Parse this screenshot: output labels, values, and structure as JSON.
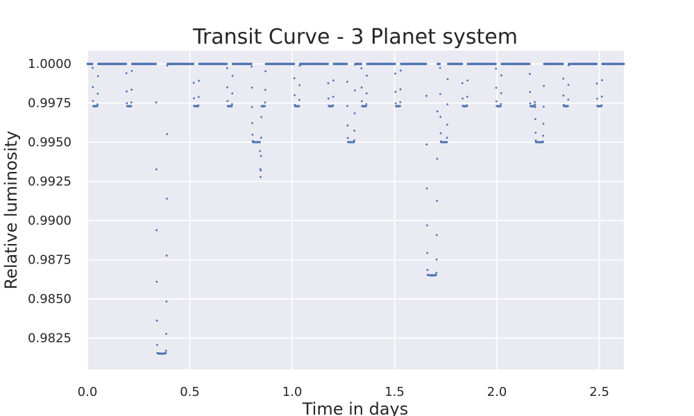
{
  "chart_data": {
    "type": "scatter",
    "title": "Transit Curve - 3 Planet system",
    "xlabel": "Time in days",
    "ylabel": "Relative luminosity",
    "xlim": [
      0.0,
      2.62
    ],
    "ylim": [
      0.98049,
      1.00085
    ],
    "xticks": [
      0.0,
      0.5,
      1.0,
      1.5,
      2.0,
      2.5
    ],
    "xtick_labels": [
      "0.0",
      "0.5",
      "1.0",
      "1.5",
      "2.0",
      "2.5"
    ],
    "yticks": [
      0.9825,
      0.985,
      0.9875,
      0.99,
      0.9925,
      0.995,
      0.9975,
      1.0
    ],
    "ytick_labels": [
      "0.9825",
      "0.9850",
      "0.9875",
      "0.9900",
      "0.9925",
      "0.9950",
      "0.9975",
      "1.0000"
    ],
    "grid": true,
    "style": "seaborn-darkgrid",
    "colors": {
      "background": "#eaeaf2",
      "grid": "#ffffff",
      "points": "#4c72b0"
    },
    "baseline": 1.0,
    "transits": [
      {
        "start": 0.025,
        "end": 0.052,
        "depth": 0.9973
      },
      {
        "start": 0.19,
        "end": 0.217,
        "depth": 0.9973
      },
      {
        "start": 0.335,
        "end": 0.39,
        "depth": 0.9815
      },
      {
        "start": 0.518,
        "end": 0.545,
        "depth": 0.9973
      },
      {
        "start": 0.682,
        "end": 0.709,
        "depth": 0.9973
      },
      {
        "start": 0.802,
        "end": 0.85,
        "depth": 0.995
      },
      {
        "start": 0.843,
        "end": 0.87,
        "depth": 0.9973
      },
      {
        "start": 1.01,
        "end": 1.037,
        "depth": 0.9973
      },
      {
        "start": 1.175,
        "end": 1.202,
        "depth": 0.9973
      },
      {
        "start": 1.268,
        "end": 1.307,
        "depth": 0.995
      },
      {
        "start": 1.338,
        "end": 1.365,
        "depth": 0.9973
      },
      {
        "start": 1.503,
        "end": 1.53,
        "depth": 0.9973
      },
      {
        "start": 1.655,
        "end": 1.71,
        "depth": 0.9865
      },
      {
        "start": 1.722,
        "end": 1.76,
        "depth": 0.995
      },
      {
        "start": 1.83,
        "end": 1.857,
        "depth": 0.9973
      },
      {
        "start": 1.995,
        "end": 2.022,
        "depth": 0.9973
      },
      {
        "start": 2.16,
        "end": 2.187,
        "depth": 0.9973
      },
      {
        "start": 2.185,
        "end": 2.23,
        "depth": 0.995
      },
      {
        "start": 2.323,
        "end": 2.35,
        "depth": 0.9973
      },
      {
        "start": 2.487,
        "end": 2.514,
        "depth": 0.9973
      }
    ]
  }
}
